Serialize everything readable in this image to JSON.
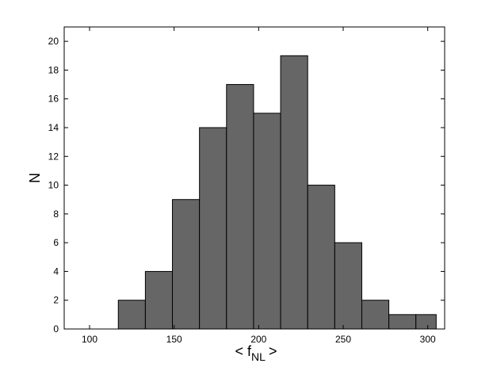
{
  "chart_data": {
    "type": "bar",
    "bin_edges": [
      117,
      133,
      149,
      165,
      181,
      197,
      213,
      229,
      245,
      261,
      277,
      293,
      305
    ],
    "values": [
      2,
      4,
      9,
      14,
      17,
      15,
      19,
      10,
      6,
      2,
      1,
      1
    ],
    "xlim": [
      85,
      310
    ],
    "ylim": [
      0,
      21
    ],
    "x_ticks": [
      100,
      150,
      200,
      250,
      300
    ],
    "y_ticks": [
      0,
      2,
      4,
      6,
      8,
      10,
      12,
      14,
      16,
      18,
      20
    ],
    "xlabel": {
      "main": "< f",
      "sub": "NL",
      "close": ">"
    },
    "ylabel": "N",
    "bar_color": "#666666",
    "edge_color": "#000000",
    "grid": false
  }
}
